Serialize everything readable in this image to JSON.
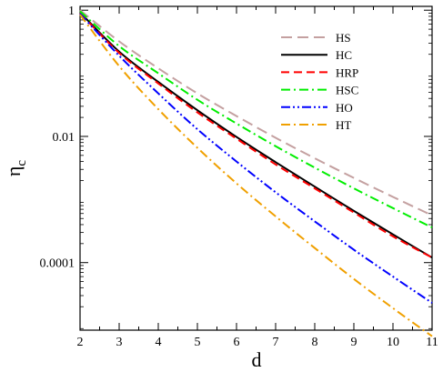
{
  "chart_data": {
    "type": "line",
    "title": "",
    "xlabel": "d",
    "ylabel": "η",
    "ylabel_sub": "c",
    "xlim": [
      2,
      11
    ],
    "ylim": [
      8.5e-06,
      1.15
    ],
    "yscale": "log",
    "grid": false,
    "legend_position": "top-right",
    "x_ticks": [
      2,
      3,
      4,
      5,
      6,
      7,
      8,
      9,
      10,
      11
    ],
    "x_tick_labels": [
      "2",
      "3",
      "4",
      "5",
      "6",
      "7",
      "8",
      "9",
      "10",
      "11"
    ],
    "y_ticks": [
      1,
      0.01,
      0.0001
    ],
    "y_tick_labels": [
      "1",
      "0.01",
      "0.0001"
    ],
    "x": [
      2,
      3,
      4,
      5,
      6,
      7,
      8,
      9,
      10,
      11
    ],
    "series": [
      {
        "name": "HS",
        "color": "#c4a0a0",
        "dash": "long-dash",
        "values": [
          1.0,
          0.32,
          0.12,
          0.048,
          0.021,
          0.0095,
          0.0045,
          0.0022,
          0.0011,
          0.00056
        ]
      },
      {
        "name": "HC",
        "color": "#000000",
        "dash": "solid",
        "values": [
          0.92,
          0.22,
          0.073,
          0.026,
          0.0098,
          0.0039,
          0.0016,
          0.00066,
          0.00028,
          0.00012
        ]
      },
      {
        "name": "HRP",
        "color": "#ff0000",
        "dash": "dash",
        "values": [
          0.9,
          0.21,
          0.069,
          0.024,
          0.0092,
          0.0036,
          0.0015,
          0.00062,
          0.00026,
          0.00012
        ]
      },
      {
        "name": "HSC",
        "color": "#00ee00",
        "dash": "dash-dot",
        "values": [
          0.96,
          0.27,
          0.1,
          0.038,
          0.016,
          0.007,
          0.0032,
          0.0015,
          0.00073,
          0.00036
        ]
      },
      {
        "name": "HO",
        "color": "#0000ff",
        "dash": "dash-dot-dot",
        "values": [
          0.88,
          0.19,
          0.048,
          0.013,
          0.004,
          0.0013,
          0.00045,
          0.00016,
          6e-05,
          2.3e-05
        ]
      },
      {
        "name": "HT",
        "color": "#f0a000",
        "dash": "dash-dot",
        "values": [
          0.85,
          0.13,
          0.027,
          0.0066,
          0.0018,
          0.00054,
          0.00017,
          5.5e-05,
          1.9e-05,
          6.8e-06
        ]
      }
    ]
  }
}
